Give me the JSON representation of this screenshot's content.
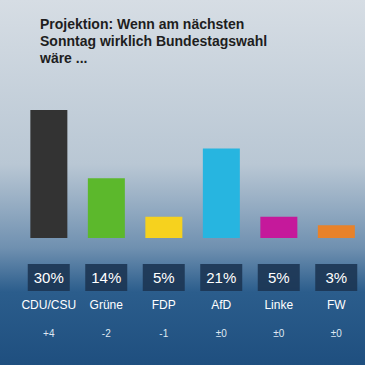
{
  "chart_data": {
    "type": "bar",
    "title": "Projektion: Wenn am nächsten Sonntag wirklich Bundestagswahl wäre ...",
    "categories": [
      "CDU/CSU",
      "Grüne",
      "FDP",
      "AfD",
      "Linke",
      "FW"
    ],
    "values": [
      30,
      14,
      5,
      21,
      5,
      3
    ],
    "value_labels": [
      "30%",
      "14%",
      "5%",
      "21%",
      "5%",
      "3%"
    ],
    "change_labels": [
      "+4",
      "-2",
      "-1",
      "±0",
      "±0",
      "±0"
    ],
    "colors": [
      "#333333",
      "#5cb82c",
      "#f6d21e",
      "#27b5e0",
      "#c5199b",
      "#e8822a"
    ],
    "ylim": [
      0,
      30
    ],
    "yticks": [
      0,
      30
    ],
    "grid": false,
    "data_labels": true,
    "tick_labels": false
  }
}
